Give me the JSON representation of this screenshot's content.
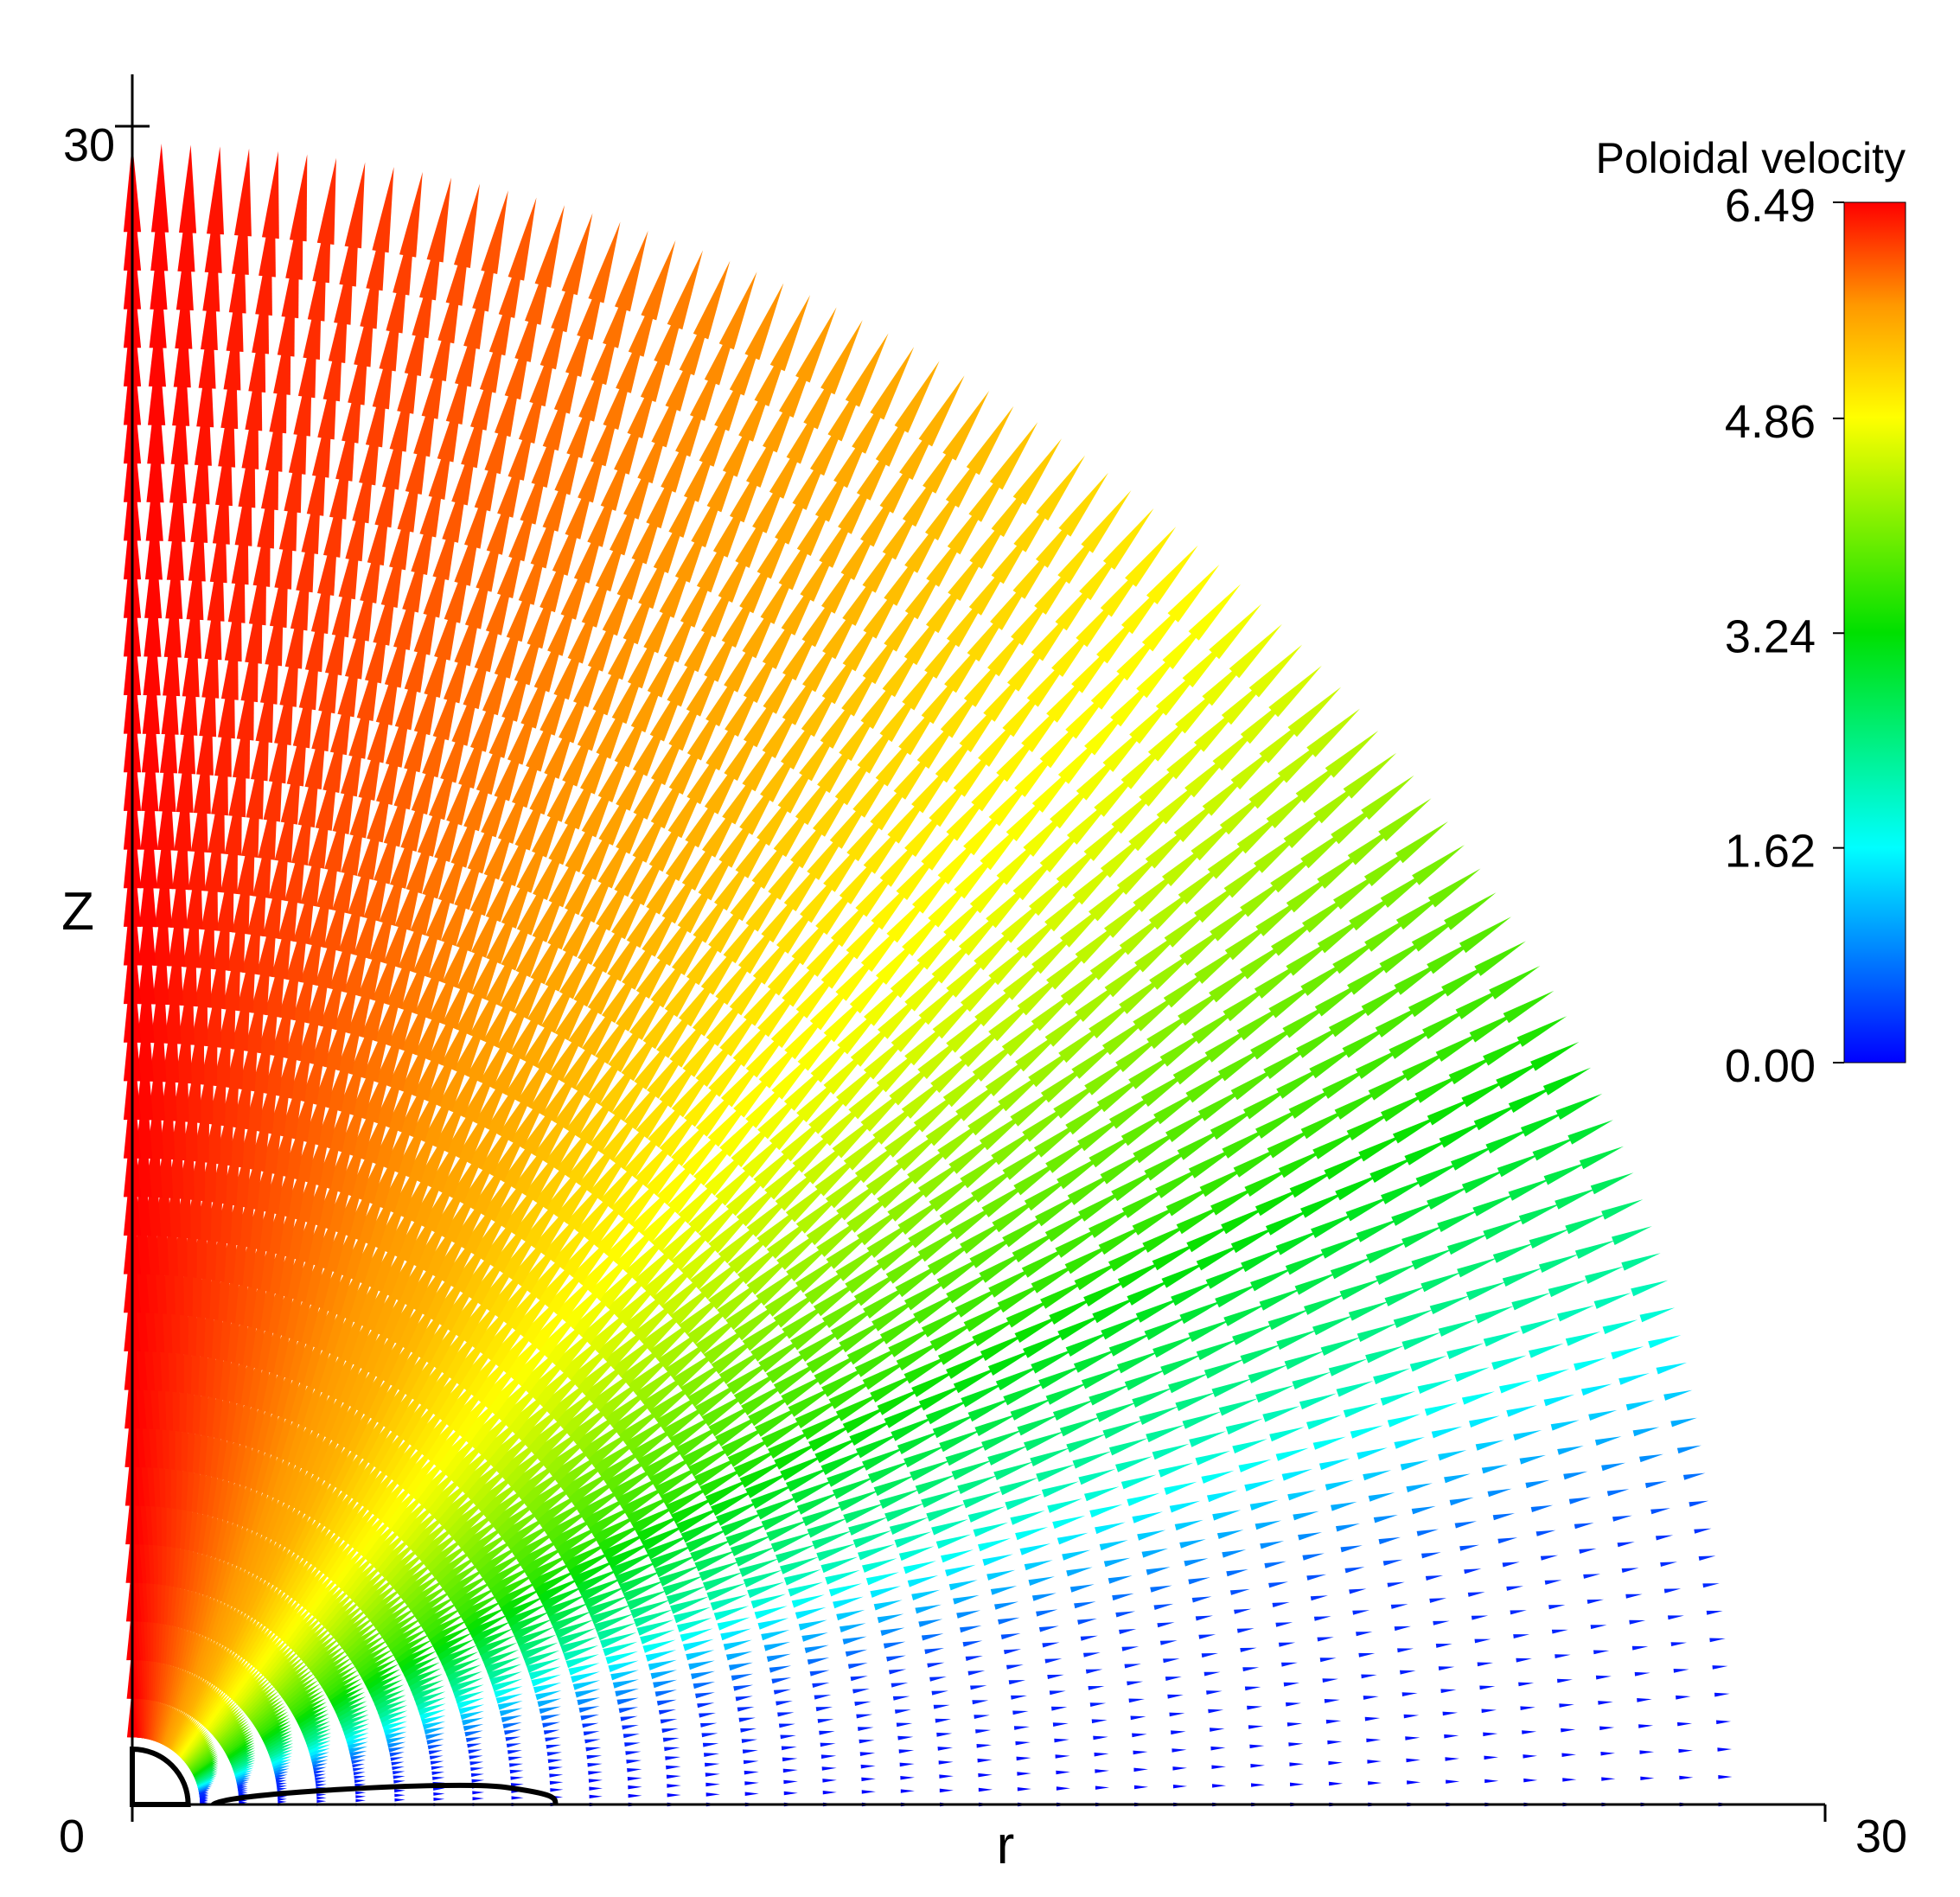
{
  "chart_data": {
    "type": "vector",
    "x_label": "r",
    "y_label": "Z",
    "xlim": [
      0,
      30
    ],
    "ylim": [
      0,
      30
    ],
    "xticks": [
      0,
      30
    ],
    "yticks": [
      30
    ],
    "colorbar": {
      "title": "Poloidal velocity",
      "clim": [
        0,
        6.49
      ],
      "ticks": [
        {
          "value": 0,
          "label": "0.00"
        },
        1.62,
        3.24,
        4.86,
        6.49
      ]
    }
  }
}
